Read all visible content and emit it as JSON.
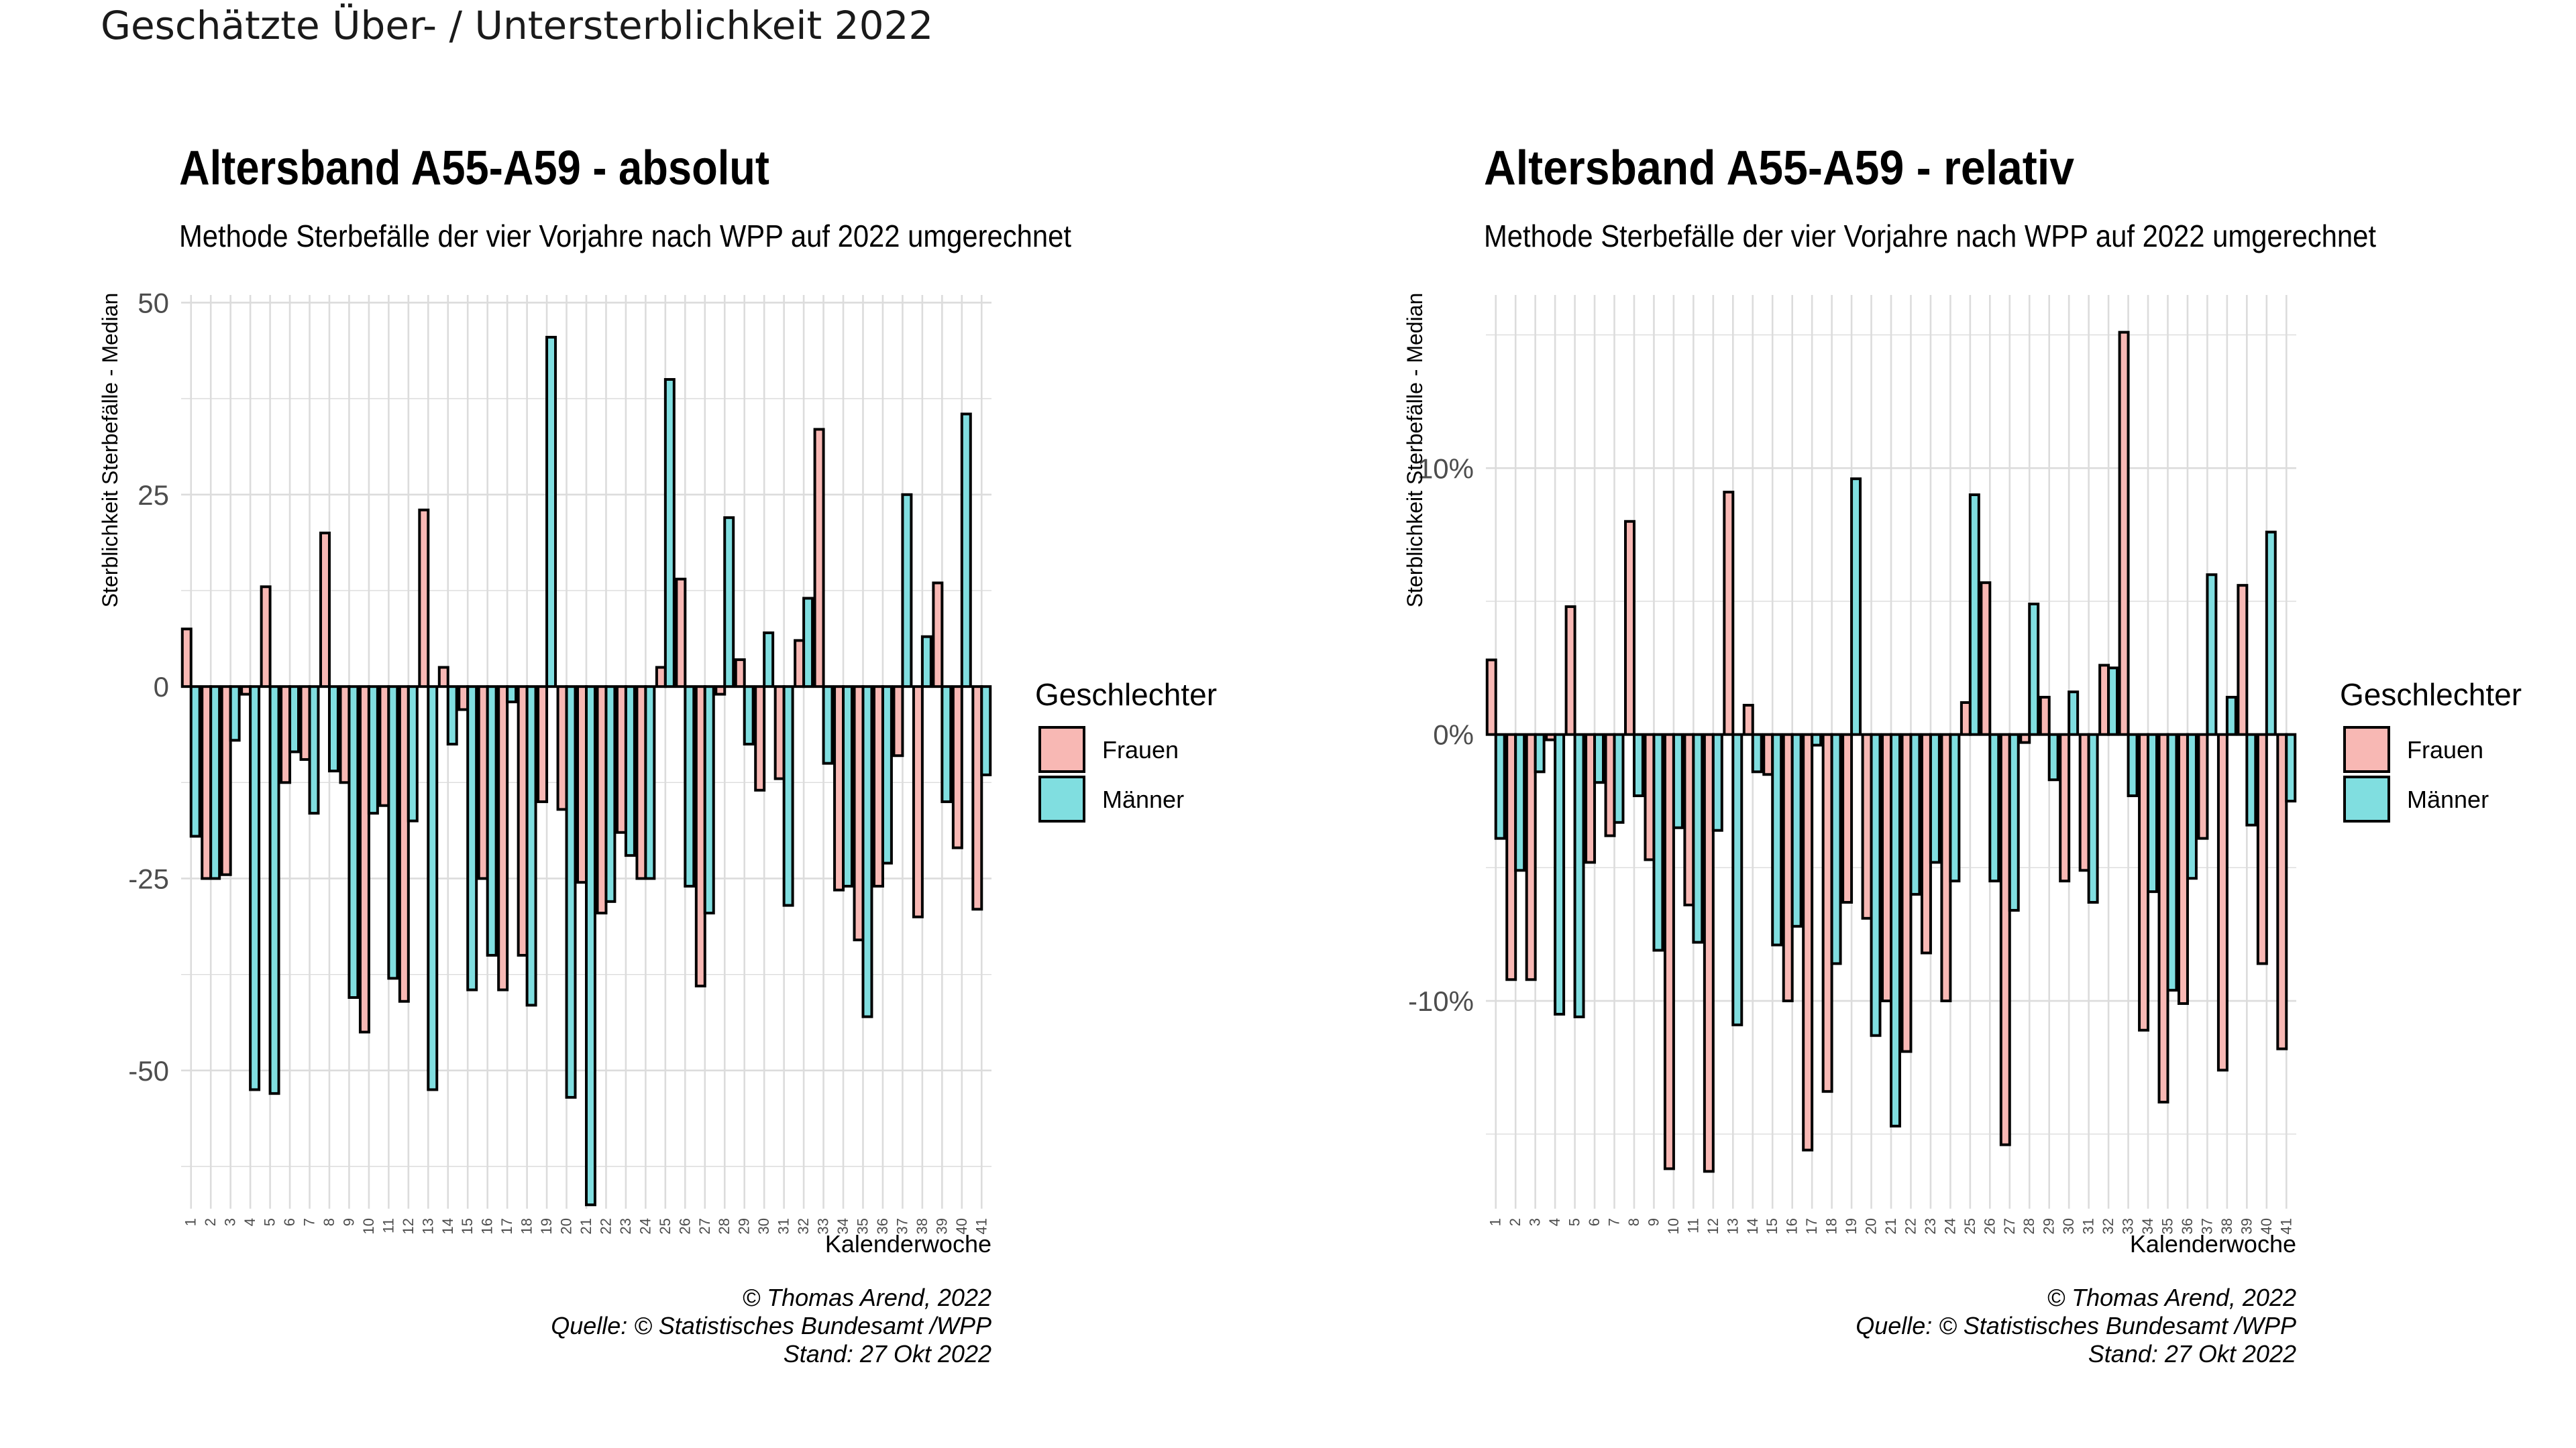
{
  "page": {
    "supertitle": "Geschätzte Über- / Untersterblichkeit 2022"
  },
  "legend": {
    "title": "Geschlechter",
    "entries": [
      {
        "name": "Frauen",
        "color": "#F8B8B4"
      },
      {
        "name": "Männer",
        "color": "#80DEE0"
      }
    ]
  },
  "charts": [
    {
      "title": "Altersband A55-A59 - absolut",
      "subtitle": "Methode Sterbefälle der vier Vorjahre nach WPP auf 2022 umgerechnet",
      "ylabel": "Sterblichkeit Sterbefälle - Median",
      "xlabel": "Kalenderwoche",
      "caption": [
        "© Thomas Arend, 2022",
        "Quelle: © Statistisches Bundesamt /WPP",
        "Stand: 27 Okt 2022"
      ]
    },
    {
      "title": "Altersband A55-A59 - relativ",
      "subtitle": "Methode Sterbefälle der vier Vorjahre nach WPP auf 2022 umgerechnet",
      "ylabel": "Sterblichkeit Sterbefälle - Median",
      "xlabel": "Kalenderwoche",
      "caption": [
        "© Thomas Arend, 2022",
        "Quelle: © Statistisches Bundesamt /WPP",
        "Stand: 27 Okt 2022"
      ]
    }
  ],
  "chart_data": [
    {
      "type": "bar",
      "title": "Altersband A55-A59 - absolut",
      "subtitle": "Methode Sterbefälle der vier Vorjahre nach WPP auf 2022 umgerechnet",
      "xlabel": "Kalenderwoche",
      "ylabel": "Sterblichkeit Sterbefälle - Median",
      "ylim": [
        -68,
        51
      ],
      "yticks": [
        50,
        25,
        0,
        -25,
        -50
      ],
      "ytick_labels": [
        "50",
        "25",
        "0",
        "-25",
        "-50"
      ],
      "grid": true,
      "legend_position": "right",
      "categories": [
        "1",
        "2",
        "3",
        "4",
        "5",
        "6",
        "7",
        "8",
        "9",
        "10",
        "11",
        "12",
        "13",
        "14",
        "15",
        "16",
        "17",
        "18",
        "19",
        "20",
        "21",
        "22",
        "23",
        "24",
        "25",
        "26",
        "27",
        "28",
        "29",
        "30",
        "31",
        "32",
        "33",
        "34",
        "35",
        "36",
        "37",
        "38",
        "39",
        "40",
        "41"
      ],
      "series": [
        {
          "name": "Frauen",
          "color": "#F8B8B4",
          "values": [
            7.5,
            -25,
            -24.5,
            -1,
            13,
            -12.5,
            -9.5,
            20,
            -12.5,
            -45,
            -15.5,
            -41,
            23,
            2.5,
            -3,
            -25,
            -39.5,
            -35,
            -15,
            -16,
            -25.5,
            -29.5,
            -19,
            -25,
            2.5,
            14,
            -39,
            -1,
            3.5,
            -13.5,
            -12,
            6,
            33.5,
            -26.5,
            -33,
            -26,
            -9,
            -30,
            13.5,
            -21,
            -29
          ]
        },
        {
          "name": "Männer",
          "color": "#80DEE0",
          "values": [
            -19.5,
            -25,
            -7,
            -52.5,
            -53,
            -8.5,
            -16.5,
            -11,
            -40.5,
            -16.5,
            -38,
            -17.5,
            -52.5,
            -7.5,
            -39.5,
            -35,
            -2,
            -41.5,
            45.5,
            -53.5,
            -67.5,
            -28,
            -22,
            -25,
            40,
            -26,
            -29.5,
            22,
            -7.5,
            7,
            -28.5,
            11.5,
            -10,
            -26,
            -43,
            -23,
            25,
            6.5,
            -15,
            35.5,
            -11.5
          ]
        }
      ]
    },
    {
      "type": "bar",
      "title": "Altersband A55-A59 - relativ",
      "subtitle": "Methode Sterbefälle der vier Vorjahre nach WPP auf 2022 umgerechnet",
      "xlabel": "Kalenderwoche",
      "ylabel": "Sterblichkeit Sterbefälle - Median",
      "ylim": [
        -17.8,
        16.5
      ],
      "yticks": [
        10,
        0,
        -10
      ],
      "ytick_labels": [
        "10%",
        "0%",
        "-10%"
      ],
      "grid": true,
      "legend_position": "right",
      "categories": [
        "1",
        "2",
        "3",
        "4",
        "5",
        "6",
        "7",
        "8",
        "9",
        "10",
        "11",
        "12",
        "13",
        "14",
        "15",
        "16",
        "17",
        "18",
        "19",
        "20",
        "21",
        "22",
        "23",
        "24",
        "25",
        "26",
        "27",
        "28",
        "29",
        "30",
        "31",
        "32",
        "33",
        "34",
        "35",
        "36",
        "37",
        "38",
        "39",
        "40",
        "41"
      ],
      "series": [
        {
          "name": "Frauen",
          "color": "#F8B8B4",
          "values": [
            2.8,
            -9.2,
            -9.2,
            -0.2,
            4.8,
            -4.8,
            -3.8,
            8,
            -4.7,
            -16.3,
            -6.4,
            -16.4,
            9.1,
            1.1,
            -1.5,
            -10,
            -15.6,
            -13.4,
            -6.3,
            -6.9,
            -10,
            -11.9,
            -8.2,
            -10,
            1.2,
            5.7,
            -15.4,
            -0.3,
            1.4,
            -5.5,
            -5.1,
            2.6,
            15.1,
            -11.1,
            -13.8,
            -10.1,
            -3.9,
            -12.6,
            5.6,
            -8.6,
            -11.8
          ]
        },
        {
          "name": "Männer",
          "color": "#80DEE0",
          "values": [
            -3.9,
            -5.1,
            -1.4,
            -10.5,
            -10.6,
            -1.8,
            -3.3,
            -2.3,
            -8.1,
            -3.5,
            -7.8,
            -3.6,
            -10.9,
            -1.4,
            -7.9,
            -7.2,
            -0.4,
            -8.6,
            9.6,
            -11.3,
            -14.7,
            -6,
            -4.8,
            -5.5,
            9,
            -5.5,
            -6.6,
            4.9,
            -1.7,
            1.6,
            -6.3,
            2.5,
            -2.3,
            -5.9,
            -9.6,
            -5.4,
            6,
            1.4,
            -3.4,
            7.6,
            -2.5
          ]
        }
      ]
    }
  ]
}
